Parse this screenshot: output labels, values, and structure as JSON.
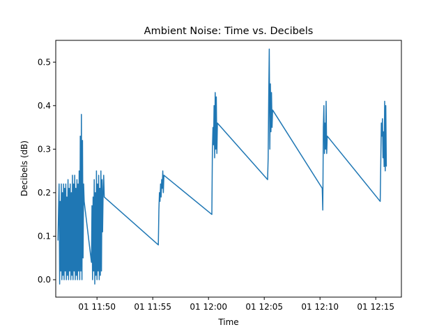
{
  "chart_data": {
    "type": "line",
    "title": "Ambient Noise: Time vs. Decibels",
    "xlabel": "Time",
    "ylabel": "Decibels (dB)",
    "x_axis_type": "time",
    "x_range": [
      "11:46:18",
      "12:17:18"
    ],
    "ylim": [
      -0.04,
      0.55
    ],
    "grid": false,
    "legend": "none",
    "x_ticks": [
      {
        "time": "11:50",
        "label": "01 11:50"
      },
      {
        "time": "11:55",
        "label": "01 11:55"
      },
      {
        "time": "12:00",
        "label": "01 12:00"
      },
      {
        "time": "12:05",
        "label": "01 12:05"
      },
      {
        "time": "12:10",
        "label": "01 12:10"
      },
      {
        "time": "12:15",
        "label": "01 12:15"
      }
    ],
    "y_ticks": [
      {
        "value": 0.0,
        "label": "0.0"
      },
      {
        "value": 0.1,
        "label": "0.1"
      },
      {
        "value": 0.2,
        "label": "0.2"
      },
      {
        "value": 0.3,
        "label": "0.3"
      },
      {
        "value": 0.4,
        "label": "0.4"
      },
      {
        "value": 0.5,
        "label": "0.5"
      }
    ],
    "series": [
      {
        "color": "#1f77b4",
        "points": [
          [
            "11:46:30",
            0.09
          ],
          [
            "11:46:33",
            0.16
          ],
          [
            "11:46:36",
            0.22
          ],
          [
            "11:46:39",
            -0.01
          ],
          [
            "11:46:42",
            0.18
          ],
          [
            "11:46:45",
            0.02
          ],
          [
            "11:46:48",
            0.22
          ],
          [
            "11:46:51",
            0.0
          ],
          [
            "11:46:54",
            0.2
          ],
          [
            "11:46:57",
            0.01
          ],
          [
            "11:47:00",
            0.22
          ],
          [
            "11:47:03",
            0.0
          ],
          [
            "11:47:06",
            0.21
          ],
          [
            "11:47:09",
            0.02
          ],
          [
            "11:47:12",
            0.22
          ],
          [
            "11:47:15",
            0.0
          ],
          [
            "11:47:18",
            0.19
          ],
          [
            "11:47:21",
            0.01
          ],
          [
            "11:47:24",
            0.23
          ],
          [
            "11:47:27",
            0.0
          ],
          [
            "11:47:30",
            0.21
          ],
          [
            "11:47:33",
            0.02
          ],
          [
            "11:47:36",
            0.22
          ],
          [
            "11:47:39",
            0.0
          ],
          [
            "11:47:42",
            0.2
          ],
          [
            "11:47:45",
            0.01
          ],
          [
            "11:47:48",
            0.24
          ],
          [
            "11:47:51",
            0.0
          ],
          [
            "11:47:54",
            0.22
          ],
          [
            "11:47:57",
            0.02
          ],
          [
            "11:48:00",
            0.24
          ],
          [
            "11:48:03",
            0.0
          ],
          [
            "11:48:06",
            0.21
          ],
          [
            "11:48:09",
            0.01
          ],
          [
            "11:48:12",
            0.23
          ],
          [
            "11:48:15",
            0.0
          ],
          [
            "11:48:18",
            0.22
          ],
          [
            "11:48:21",
            0.02
          ],
          [
            "11:48:24",
            0.25
          ],
          [
            "11:48:27",
            0.0
          ],
          [
            "11:48:30",
            0.33
          ],
          [
            "11:48:33",
            0.02
          ],
          [
            "11:48:36",
            0.38
          ],
          [
            "11:48:39",
            0.0
          ],
          [
            "11:48:42",
            0.32
          ],
          [
            "11:48:45",
            0.05
          ],
          [
            "11:48:48",
            0.22
          ],
          [
            "11:48:51",
            0.18
          ],
          [
            "11:49:30",
            0.04
          ],
          [
            "11:49:33",
            0.17
          ],
          [
            "11:49:36",
            0.0
          ],
          [
            "11:49:39",
            0.19
          ],
          [
            "11:49:42",
            0.02
          ],
          [
            "11:49:45",
            0.23
          ],
          [
            "11:49:48",
            -0.01
          ],
          [
            "11:49:51",
            0.2
          ],
          [
            "11:49:54",
            0.01
          ],
          [
            "11:49:57",
            0.25
          ],
          [
            "11:50:00",
            0.0
          ],
          [
            "11:50:03",
            0.22
          ],
          [
            "11:50:06",
            0.02
          ],
          [
            "11:50:09",
            0.24
          ],
          [
            "11:50:12",
            0.0
          ],
          [
            "11:50:15",
            0.21
          ],
          [
            "11:50:18",
            0.01
          ],
          [
            "11:50:21",
            0.25
          ],
          [
            "11:50:24",
            0.02
          ],
          [
            "11:50:27",
            0.23
          ],
          [
            "11:50:30",
            0.11
          ],
          [
            "11:50:33",
            0.2
          ],
          [
            "11:50:36",
            0.24
          ],
          [
            "11:50:39",
            0.19
          ],
          [
            "11:55:30",
            0.08
          ],
          [
            "11:55:33",
            0.16
          ],
          [
            "11:55:36",
            0.2
          ],
          [
            "11:55:39",
            0.18
          ],
          [
            "11:55:42",
            0.22
          ],
          [
            "11:55:45",
            0.19
          ],
          [
            "11:55:48",
            0.23
          ],
          [
            "11:55:51",
            0.21
          ],
          [
            "11:55:54",
            0.25
          ],
          [
            "11:55:57",
            0.2
          ],
          [
            "11:56:00",
            0.24
          ],
          [
            "12:00:18",
            0.15
          ],
          [
            "12:00:21",
            0.3
          ],
          [
            "12:00:24",
            0.35
          ],
          [
            "12:00:27",
            0.31
          ],
          [
            "12:00:30",
            0.4
          ],
          [
            "12:00:33",
            0.28
          ],
          [
            "12:00:36",
            0.43
          ],
          [
            "12:00:39",
            0.3
          ],
          [
            "12:00:42",
            0.42
          ],
          [
            "12:00:45",
            0.29
          ],
          [
            "12:00:48",
            0.36
          ],
          [
            "12:05:18",
            0.23
          ],
          [
            "12:05:21",
            0.28
          ],
          [
            "12:05:24",
            0.42
          ],
          [
            "12:05:27",
            0.53
          ],
          [
            "12:05:30",
            0.3
          ],
          [
            "12:05:33",
            0.45
          ],
          [
            "12:05:36",
            0.34
          ],
          [
            "12:05:39",
            0.43
          ],
          [
            "12:05:42",
            0.35
          ],
          [
            "12:05:45",
            0.39
          ],
          [
            "12:10:12",
            0.21
          ],
          [
            "12:10:15",
            0.16
          ],
          [
            "12:10:18",
            0.35
          ],
          [
            "12:10:21",
            0.4
          ],
          [
            "12:10:24",
            0.29
          ],
          [
            "12:10:27",
            0.36
          ],
          [
            "12:10:30",
            0.3
          ],
          [
            "12:10:33",
            0.41
          ],
          [
            "12:10:36",
            0.29
          ],
          [
            "12:10:39",
            0.33
          ],
          [
            "12:15:24",
            0.18
          ],
          [
            "12:15:27",
            0.27
          ],
          [
            "12:15:30",
            0.36
          ],
          [
            "12:15:33",
            0.33
          ],
          [
            "12:15:36",
            0.37
          ],
          [
            "12:15:39",
            0.28
          ],
          [
            "12:15:42",
            0.34
          ],
          [
            "12:15:45",
            0.26
          ],
          [
            "12:15:48",
            0.41
          ],
          [
            "12:15:51",
            0.25
          ],
          [
            "12:15:54",
            0.4
          ],
          [
            "12:15:57",
            0.26
          ]
        ]
      }
    ]
  }
}
